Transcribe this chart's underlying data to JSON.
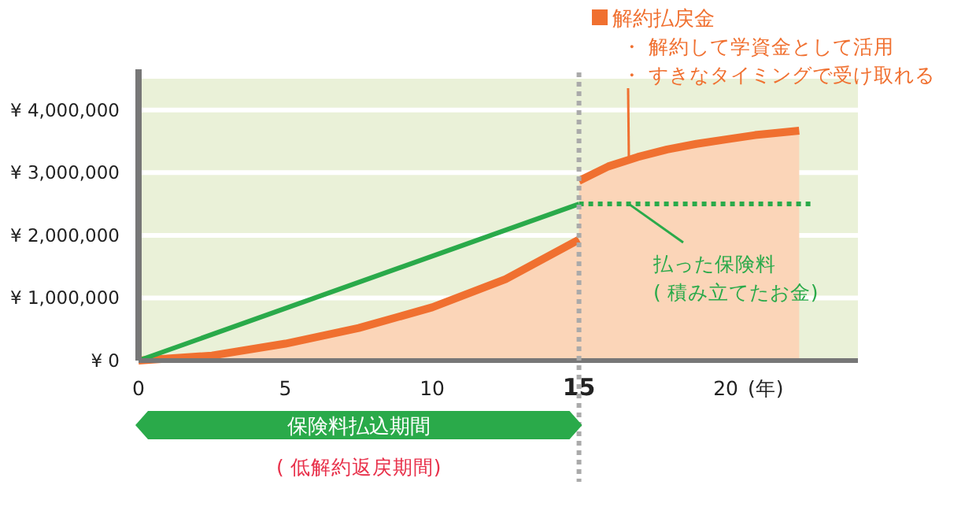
{
  "chart_data": {
    "type": "line",
    "xlabel": "(年)",
    "xlim": [
      0,
      24.5
    ],
    "ylim": [
      0,
      4500000
    ],
    "xticks": [
      0,
      5,
      10,
      {
        "value": 15,
        "label": "15"
      },
      20
    ],
    "yticks": [
      {
        "value": 0,
        "label": "¥ 0"
      },
      {
        "value": 1000000,
        "label": "¥ 1,000,000"
      },
      {
        "value": 2000000,
        "label": "¥ 2,000,000"
      },
      {
        "value": 3000000,
        "label": "¥ 3,000,000"
      },
      {
        "value": 4000000,
        "label": "¥ 4,000,000"
      }
    ],
    "grid": "y",
    "series": [
      {
        "name": "解約払戻金",
        "type": "area",
        "color": "#f07030",
        "x": [
          0,
          2.5,
          5,
          7.5,
          10,
          12.5,
          15,
          null,
          15,
          16,
          17,
          18,
          19,
          20,
          21,
          22.5
        ],
        "values": [
          0,
          80000,
          270000,
          520000,
          850000,
          1300000,
          1930000,
          null,
          2870000,
          3100000,
          3250000,
          3370000,
          3460000,
          3530000,
          3600000,
          3670000
        ]
      },
      {
        "color": "#2aaa4a",
        "line_style": "solid",
        "x": [
          0,
          15
        ],
        "values": [
          0,
          2500000
        ]
      },
      {
        "name": "払った保険料",
        "color": "#2aaa4a",
        "line_style": "dotted",
        "x": [
          15,
          22.9
        ],
        "values": [
          2500000,
          2500000
        ]
      }
    ],
    "ref_lines": [
      {
        "axis": "x",
        "value": 15,
        "color": "#aaaaaa",
        "line_style": "dotted"
      }
    ],
    "annotations": [
      "・ 解約して学資金として活用",
      {
        "text": "・ すきなタイミングで受け取れる",
        "x": 16.7,
        "y": 3180000
      },
      "( 積み立てたお金)",
      "保険料払込期間",
      "( 低解約返戻期間)"
    ]
  }
}
